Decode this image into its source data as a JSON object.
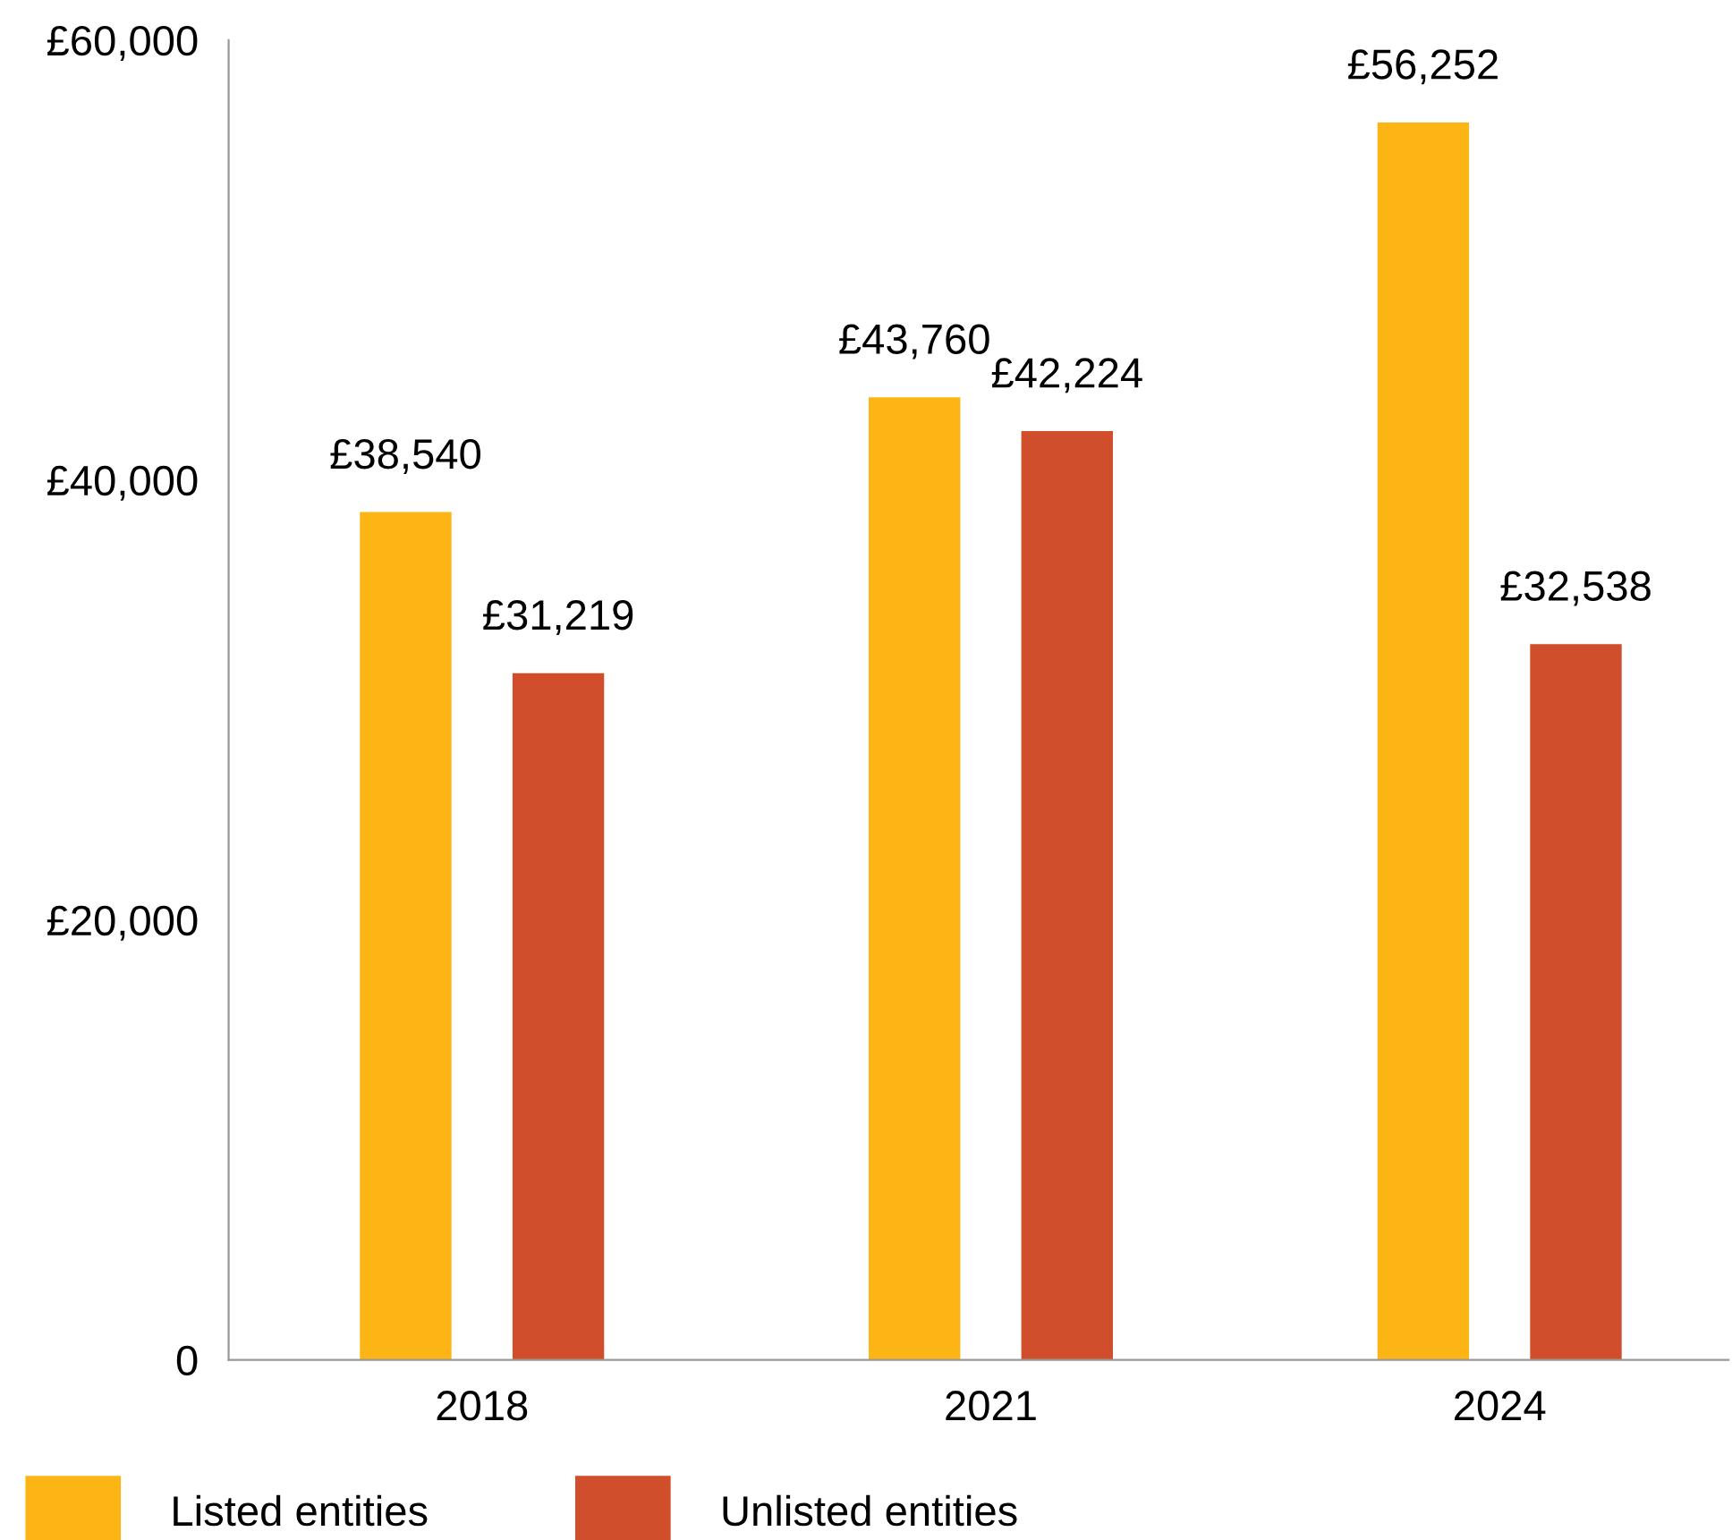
{
  "chart_data": {
    "type": "bar",
    "categories": [
      "2018",
      "2021",
      "2024"
    ],
    "series": [
      {
        "name": "Listed entities",
        "color": "#fdb515",
        "values": [
          38540,
          43760,
          56252
        ],
        "value_labels": [
          "£38,540",
          "£43,760",
          "£56,252"
        ]
      },
      {
        "name": "Unlisted entities",
        "color": "#d04e2b",
        "values": [
          31219,
          42224,
          32538
        ],
        "value_labels": [
          "£31,219",
          "£42,224",
          "£32,538"
        ]
      }
    ],
    "ylim": [
      0,
      60000
    ],
    "yticks": [
      {
        "value": 0,
        "label": "0"
      },
      {
        "value": 20000,
        "label": "£20,000"
      },
      {
        "value": 40000,
        "label": "£40,000"
      },
      {
        "value": 60000,
        "label": "£60,000"
      }
    ],
    "grid": false,
    "legend": "bottom left"
  }
}
